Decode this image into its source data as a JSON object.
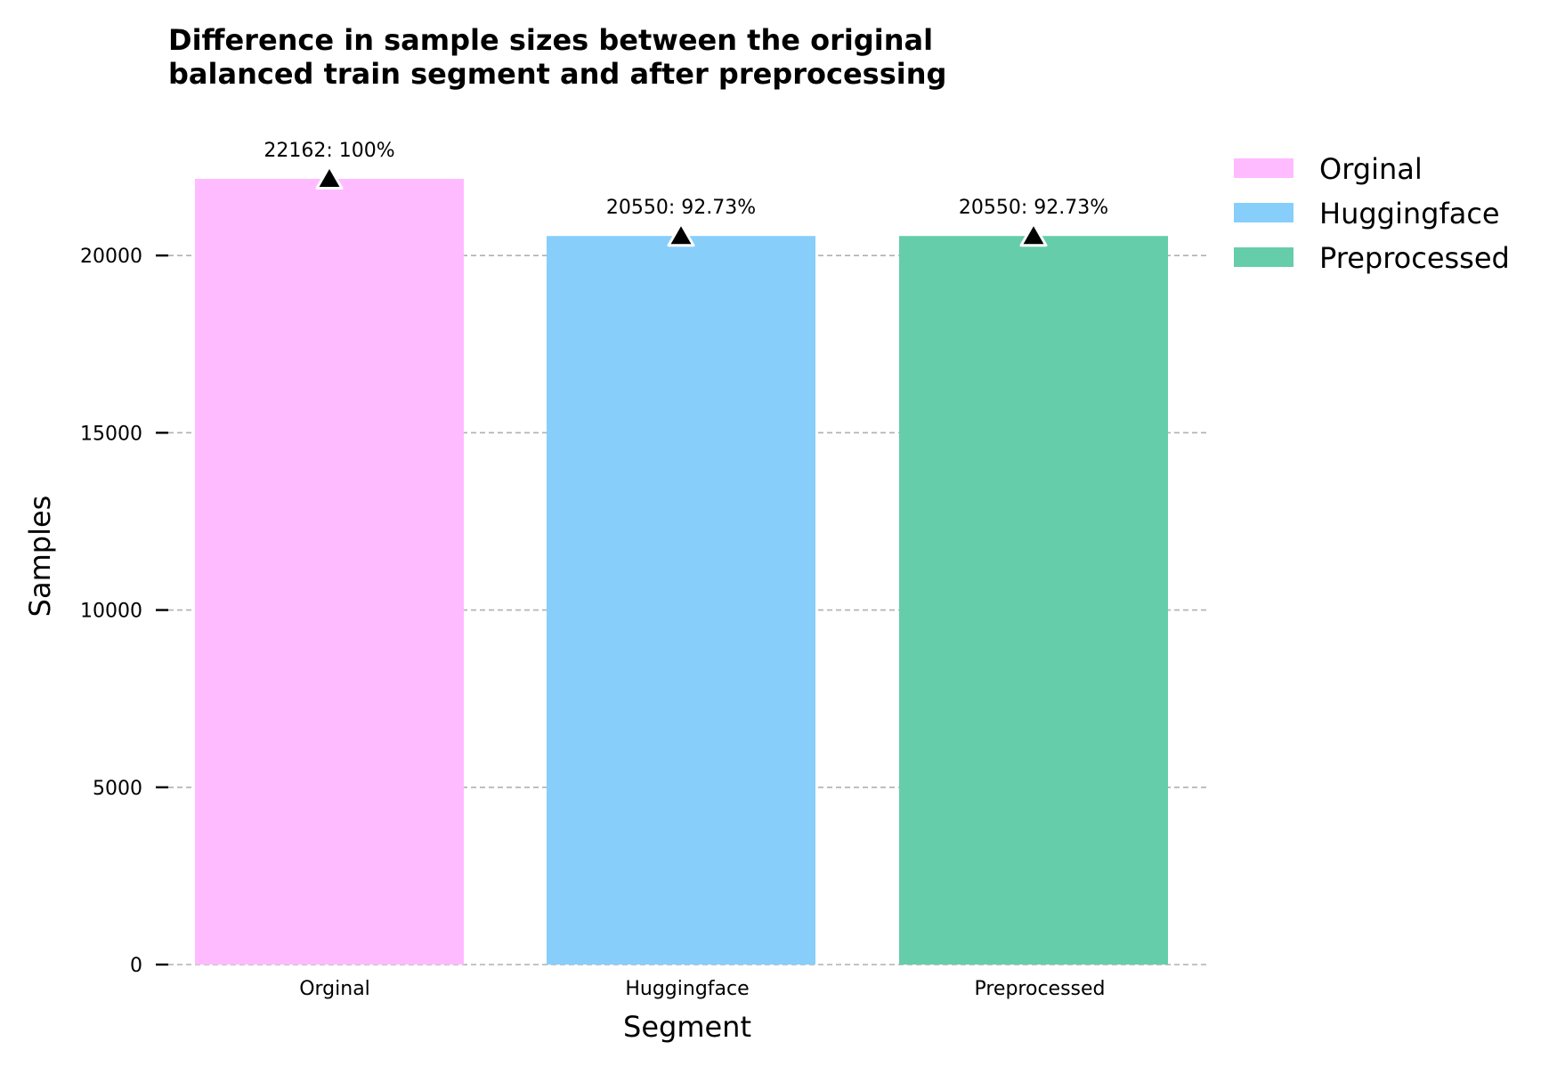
{
  "chart_data": {
    "type": "bar",
    "title": "Difference in sample sizes between the original balanced train segment and after preprocessing",
    "title_lines": [
      "Difference in sample sizes between the original",
      "balanced train segment and after preprocessing"
    ],
    "xlabel": "Segment",
    "ylabel": "Samples",
    "categories": [
      "Orginal",
      "Huggingface",
      "Preprocessed"
    ],
    "values": [
      22162,
      20550,
      20550
    ],
    "data_labels": [
      "22162: 100%",
      "20550: 92.73%",
      "20550: 92.73%"
    ],
    "colors": [
      "#FFBBFF",
      "#87CEFA",
      "#66CDAA"
    ],
    "ylim": [
      0,
      22162
    ],
    "yticks": [
      0,
      5000,
      10000,
      15000,
      20000
    ],
    "ytick_labels": [
      "0",
      "5000",
      "10000",
      "15000",
      "20000"
    ],
    "grid": "y-dashed",
    "marker": "triangle-up",
    "legend": {
      "position": "outside-top-right",
      "entries": [
        "Orginal",
        "Huggingface",
        "Preprocessed"
      ]
    }
  }
}
